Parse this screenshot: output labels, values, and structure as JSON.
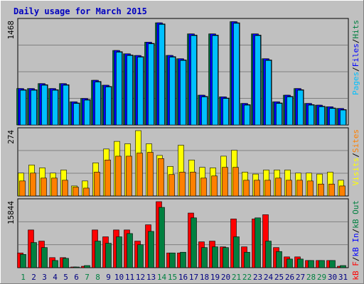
{
  "chart_data": [
    {
      "type": "bar",
      "title": "Daily usage for March 2015",
      "panel": "pages-files-hits",
      "ymax_label": "1468",
      "categories": [
        "1",
        "2",
        "3",
        "4",
        "5",
        "6",
        "7",
        "8",
        "9",
        "10",
        "11",
        "12",
        "13",
        "14",
        "15",
        "16",
        "17",
        "18",
        "19",
        "20",
        "21",
        "22",
        "23",
        "24",
        "25",
        "26",
        "27",
        "28",
        "29",
        "30",
        "31"
      ],
      "weekend_days": [
        "1",
        "7",
        "8",
        "14",
        "15",
        "21",
        "22",
        "28",
        "29"
      ],
      "ylim": [
        0,
        1468
      ],
      "legend": [
        {
          "text": "Pages",
          "color": "#00c0ff"
        },
        {
          "text": "/",
          "color": "#000000"
        },
        {
          "text": "Files",
          "color": "#0000ff"
        },
        {
          "text": "/",
          "color": "#000000"
        },
        {
          "text": "Hits",
          "color": "#008040"
        }
      ],
      "series": [
        {
          "name": "Hits",
          "color": "#008040",
          "values": [
            516,
            516,
            586,
            516,
            586,
            328,
            375,
            633,
            563,
            1055,
            1008,
            984,
            1172,
            1447,
            985,
            938,
            1290,
            422,
            1290,
            398,
            1463,
            305,
            1290,
            938,
            328,
            422,
            516,
            305,
            281,
            258,
            234
          ]
        },
        {
          "name": "Files",
          "color": "#0000ff",
          "values": [
            516,
            516,
            586,
            516,
            586,
            328,
            375,
            633,
            563,
            1055,
            1008,
            984,
            1172,
            1447,
            985,
            938,
            1290,
            422,
            1290,
            398,
            1463,
            305,
            1290,
            938,
            328,
            422,
            516,
            305,
            281,
            258,
            234
          ]
        },
        {
          "name": "Pages",
          "color": "#00c0ff",
          "values": [
            492,
            492,
            563,
            492,
            563,
            305,
            352,
            609,
            539,
            1031,
            984,
            961,
            1149,
            1424,
            961,
            914,
            1266,
            398,
            1266,
            375,
            1440,
            281,
            1266,
            914,
            305,
            398,
            492,
            281,
            258,
            234,
            211
          ]
        }
      ]
    },
    {
      "type": "bar",
      "panel": "visits-sites",
      "ymax_label": "274",
      "categories": [
        "1",
        "2",
        "3",
        "4",
        "5",
        "6",
        "7",
        "8",
        "9",
        "10",
        "11",
        "12",
        "13",
        "14",
        "15",
        "16",
        "17",
        "18",
        "19",
        "20",
        "21",
        "22",
        "23",
        "24",
        "25",
        "26",
        "27",
        "28",
        "29",
        "30",
        "31"
      ],
      "ylim": [
        0,
        274
      ],
      "legend": [
        {
          "text": "Visits",
          "color": "#ffff00"
        },
        {
          "text": "/",
          "color": "#000000"
        },
        {
          "text": "Sites",
          "color": "#ff8000"
        }
      ],
      "series": [
        {
          "name": "Visits",
          "color": "#ffff00",
          "values": [
            96,
            130,
            118,
            96,
            109,
            42,
            63,
            139,
            197,
            229,
            219,
            274,
            219,
            170,
            124,
            213,
            151,
            120,
            118,
            167,
            192,
            100,
            92,
            109,
            109,
            109,
            96,
            96,
            92,
            100,
            66
          ]
        },
        {
          "name": "Sites",
          "color": "#ff8000",
          "values": [
            63,
            96,
            75,
            75,
            66,
            37,
            33,
            100,
            151,
            167,
            167,
            180,
            183,
            157,
            90,
            100,
            100,
            75,
            84,
            120,
            120,
            66,
            66,
            66,
            75,
            66,
            66,
            63,
            50,
            50,
            42
          ]
        }
      ]
    },
    {
      "type": "bar",
      "panel": "kb",
      "ymax_label": "15844",
      "categories": [
        "1",
        "2",
        "3",
        "4",
        "5",
        "6",
        "7",
        "8",
        "9",
        "10",
        "11",
        "12",
        "13",
        "14",
        "15",
        "16",
        "17",
        "18",
        "19",
        "20",
        "21",
        "22",
        "23",
        "24",
        "25",
        "26",
        "27",
        "28",
        "29",
        "30",
        "31"
      ],
      "ylim": [
        0,
        15844
      ],
      "legend": [
        {
          "text": "kB F",
          "color": "#ff0000"
        },
        {
          "text": "/",
          "color": "#000000"
        },
        {
          "text": "kB In",
          "color": "#0000ff"
        },
        {
          "text": "/",
          "color": "#000000"
        },
        {
          "text": "kB Out",
          "color": "#008040"
        }
      ],
      "series": [
        {
          "name": "kB F",
          "color": "#ff0000",
          "values": [
            3536,
            9054,
            6377,
            2415,
            2415,
            170,
            342,
            9054,
            7410,
            9054,
            9054,
            6377,
            10298,
            15844,
            3536,
            3536,
            13113,
            6205,
            6377,
            5000,
            11696,
            5000,
            11696,
            12717,
            4828,
            2588,
            2588,
            1724,
            1724,
            1724,
            342
          ]
        },
        {
          "name": "kB Out",
          "color": "#008040",
          "values": [
            3190,
            6033,
            4828,
            1724,
            2242,
            170,
            512,
            6377,
            5860,
            7410,
            8191,
            5518,
            8709,
            14474,
            3536,
            3707,
            11955,
            4828,
            5000,
            4828,
            7411,
            3706,
            11955,
            6377,
            3879,
            2071,
            2071,
            1724,
            1724,
            1724,
            512
          ]
        }
      ]
    }
  ]
}
